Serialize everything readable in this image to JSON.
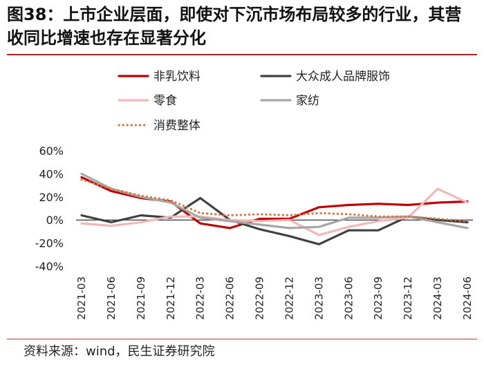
{
  "figure": {
    "title": "图38：上市企业层面，即使对下沉市场布局较多的行业，其营收同比增速也存在显著分化",
    "source": "资料来源：wind，民生证券研究院"
  },
  "chart_data": {
    "type": "line",
    "title": "图38：上市企业层面，即使对下沉市场布局较多的行业，其营收同比增速也存在显著分化",
    "xlabel": "",
    "ylabel": "",
    "ylim": [
      -40,
      60
    ],
    "yticks": [
      60,
      40,
      20,
      0,
      -20,
      -40
    ],
    "ytick_labels": [
      "60%",
      "40%",
      "20%",
      "0%",
      "-20%",
      "-40%"
    ],
    "categories": [
      "2021-03",
      "2021-06",
      "2021-09",
      "2021-12",
      "2022-03",
      "2022-06",
      "2022-09",
      "2022-12",
      "2023-03",
      "2023-06",
      "2023-09",
      "2023-12",
      "2024-03",
      "2024-06"
    ],
    "legend_position": "top",
    "series": [
      {
        "name": "非乳饮料",
        "color": "#c00000",
        "style": "solid",
        "values": [
          37,
          25,
          19,
          16,
          -3,
          -7,
          1,
          1,
          11,
          13,
          14,
          13,
          15,
          16
        ]
      },
      {
        "name": "大众成人品牌服饰",
        "color": "#404040",
        "style": "solid",
        "values": [
          4,
          -2,
          4,
          2,
          19,
          0,
          -8,
          -14,
          -21,
          -9,
          -9,
          3,
          0,
          -2
        ]
      },
      {
        "name": "零食",
        "color": "#f2b8b8",
        "style": "solid",
        "values": [
          -3,
          -5,
          -2,
          3,
          3,
          0,
          -1,
          0,
          -13,
          -6,
          -1,
          2,
          27,
          15
        ]
      },
      {
        "name": "家纺",
        "color": "#a6a6a6",
        "style": "solid",
        "values": [
          40,
          27,
          20,
          15,
          2,
          -1,
          -4,
          -7,
          -6,
          2,
          2,
          3,
          -2,
          -7
        ]
      },
      {
        "name": "消费整体",
        "color": "#d9733b",
        "style": "dotted",
        "values": [
          35,
          27,
          21,
          17,
          6,
          4,
          5,
          4,
          6,
          5,
          3,
          3,
          1,
          -1
        ]
      }
    ]
  }
}
